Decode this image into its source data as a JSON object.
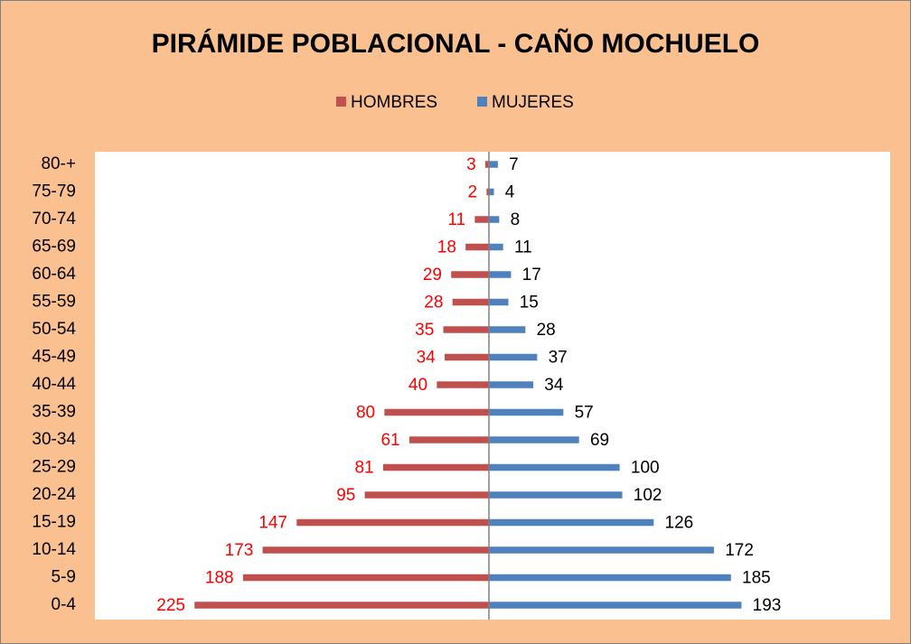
{
  "chart_data": {
    "type": "pyramid",
    "title": "PIRÁMIDE POBLACIONAL - CAÑO MOCHUELO",
    "categories": [
      "80-+",
      "75-79",
      "70-74",
      "65-69",
      "60-64",
      "55-59",
      "50-54",
      "45-49",
      "40-44",
      "35-39",
      "30-34",
      "25-29",
      "20-24",
      "15-19",
      "10-14",
      "5-9",
      "0-4"
    ],
    "series": [
      {
        "name": "HOMBRES",
        "color": "#c0504d",
        "side": "left",
        "values": [
          3,
          2,
          11,
          18,
          29,
          28,
          35,
          34,
          40,
          80,
          61,
          81,
          95,
          147,
          173,
          188,
          225
        ]
      },
      {
        "name": "MUJERES",
        "color": "#4f81bd",
        "side": "right",
        "values": [
          7,
          4,
          8,
          11,
          17,
          15,
          28,
          37,
          34,
          57,
          69,
          100,
          102,
          126,
          172,
          185,
          193
        ]
      }
    ],
    "legend": "top"
  }
}
